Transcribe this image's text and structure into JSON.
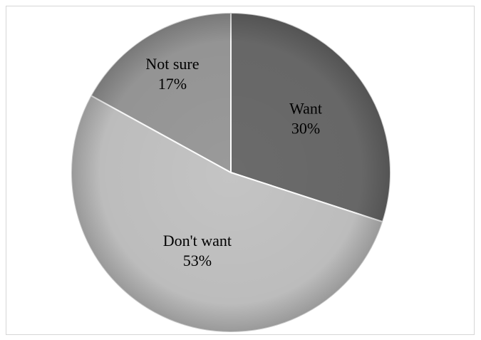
{
  "chart_data": {
    "type": "pie",
    "title": "",
    "legend": "none",
    "start_angle_deg": 0,
    "direction": "clockwise",
    "slices": [
      {
        "label": "Want",
        "value": 30,
        "value_label": "30%",
        "color": "#6b6b6b"
      },
      {
        "label": "Don't want",
        "value": 53,
        "value_label": "53%",
        "color": "#c4c4c4"
      },
      {
        "label": "Not sure",
        "value": 17,
        "value_label": "17%",
        "color": "#9a9a9a"
      }
    ],
    "colors": {
      "edge": "#ffffff",
      "shade": "#4a4a4a",
      "frame": "#d6d6d6"
    }
  }
}
